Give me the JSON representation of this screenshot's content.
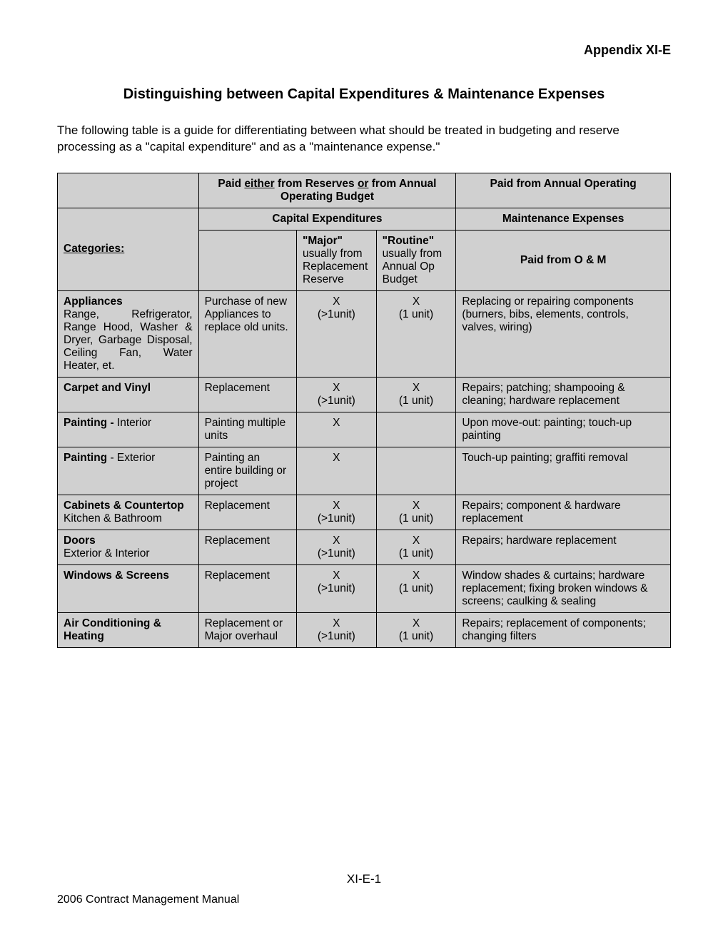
{
  "appendix": "Appendix XI-E",
  "title": "Distinguishing between Capital Expenditures & Maintenance Expenses",
  "intro": "The following table is a guide for differentiating between what should be treated in budgeting and reserve processing as a \"capital expenditure\" and as a \"maintenance expense.\"",
  "headers": {
    "h1a_pre": "Paid ",
    "h1a_u1": "either",
    "h1a_mid": " from Reserves ",
    "h1a_u2": "or",
    "h1a_post": " from Annual Operating Budget",
    "h1b": "Paid from Annual Operating",
    "categories": "Categories:",
    "capex": "Capital Expenditures",
    "maint": "Maintenance Expenses",
    "major": "\"Major\"",
    "major_sub": "usually from Replacement Reserve",
    "routine": "\"Routine\"",
    "routine_sub": "usually from Annual Op Budget",
    "om": "Paid from O & M"
  },
  "rows": [
    {
      "cat_bold": "Appliances",
      "cat_rest": "Range, Refrigerator, Range Hood, Washer & Dryer, Garbage Disposal, Ceiling Fan, Water Heater, et.",
      "desc": "Purchase of new Appliances to replace old units.",
      "major": "X\n(>1unit)",
      "routine": "X\n(1 unit)",
      "maint": "Replacing or repairing components (burners, bibs, elements, controls, valves, wiring)",
      "justify": true
    },
    {
      "cat_bold": "Carpet and Vinyl",
      "cat_rest": "",
      "desc": "Replacement",
      "major": "X\n(>1unit)",
      "routine": "X\n(1 unit)",
      "maint": "Repairs; patching; shampooing & cleaning; hardware replacement"
    },
    {
      "cat_bold": "Painting - ",
      "cat_bold2": "Interior",
      "cat_rest": "",
      "desc": "Painting multiple units",
      "major": "X",
      "routine": "",
      "maint": "Upon move-out: painting; touch-up painting"
    },
    {
      "cat_bold": "Painting",
      "cat_bold2": " - Exterior",
      "cat_rest": "",
      "desc": "Painting an entire building or project",
      "major": "X",
      "routine": "",
      "maint": "Touch-up painting; graffiti removal"
    },
    {
      "cat_bold": "Cabinets & Countertop",
      "cat_rest": "Kitchen & Bathroom",
      "desc": "Replacement",
      "major": "X\n(>1unit)",
      "routine": "X\n(1 unit)",
      "maint": "Repairs; component & hardware replacement"
    },
    {
      "cat_bold": "Doors",
      "cat_rest": "Exterior & Interior",
      "desc": "Replacement",
      "major": "X\n(>1unit)",
      "routine": "X\n(1 unit)",
      "maint": "Repairs; hardware replacement"
    },
    {
      "cat_bold": "Windows & Screens",
      "cat_rest": "",
      "desc": "Replacement",
      "major": "X\n(>1unit)",
      "routine": "X\n(1 unit)",
      "maint": "Window shades & curtains; hardware replacement; fixing broken windows & screens; caulking & sealing"
    },
    {
      "cat_bold": "Air Conditioning & Heating",
      "cat_rest": "",
      "desc": "Replacement or\nMajor overhaul",
      "major": "X\n(>1unit)",
      "routine": "X\n(1 unit)",
      "maint": "Repairs; replacement of components; changing filters"
    }
  ],
  "footer": {
    "center": "XI-E-1",
    "left": "2006 Contract Management Manual"
  }
}
